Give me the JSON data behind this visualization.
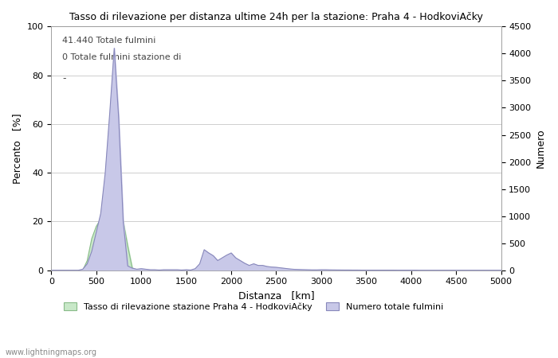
{
  "title": "Tasso di rilevazione per distanza ultime 24h per la stazione: Praha 4 - HodkoviAčky",
  "xlabel": "Distanza   [km]",
  "ylabel_left": "Percento   [%]",
  "ylabel_right": "Numero",
  "annotation_line1": "41.440 Totale fulmini",
  "annotation_line2": "0 Totale fulmini stazione di",
  "xlim": [
    0,
    5000
  ],
  "ylim_left": [
    0,
    100
  ],
  "ylim_right": [
    0,
    4500
  ],
  "xticks": [
    0,
    500,
    1000,
    1500,
    2000,
    2500,
    3000,
    3500,
    4000,
    4500,
    5000
  ],
  "yticks_left": [
    0,
    20,
    40,
    60,
    80,
    100
  ],
  "yticks_right": [
    0,
    500,
    1000,
    1500,
    2000,
    2500,
    3000,
    3500,
    4000,
    4500
  ],
  "legend_label_green": "Tasso di rilevazione stazione Praha 4 - HodkoviAčky",
  "legend_label_blue": "Numero totale fulmini",
  "watermark": "www.lightningmaps.org",
  "bg_color": "#ffffff",
  "grid_color": "#aaaaaa",
  "fill_green_color": "#c8e8c8",
  "fill_blue_color": "#c8c8e8",
  "line_blue_color": "#8888bb",
  "line_green_color": "#88bb88",
  "distances": [
    0,
    50,
    100,
    150,
    200,
    250,
    300,
    350,
    400,
    450,
    500,
    550,
    600,
    650,
    700,
    750,
    800,
    850,
    900,
    950,
    1000,
    1050,
    1100,
    1150,
    1200,
    1250,
    1300,
    1350,
    1400,
    1450,
    1500,
    1550,
    1600,
    1650,
    1700,
    1750,
    1800,
    1850,
    1900,
    1950,
    2000,
    2050,
    2100,
    2150,
    2200,
    2250,
    2300,
    2350,
    2400,
    2450,
    2500,
    2550,
    2600,
    2650,
    2700,
    2750,
    2800,
    2850,
    2900,
    2950,
    3000,
    3050,
    3100,
    3150,
    3200,
    3250,
    3300,
    3350,
    3400,
    3450,
    3500,
    3550,
    3600,
    3650,
    3700,
    3750,
    3800,
    3850,
    3900,
    3950,
    4000,
    4050,
    4100,
    4150,
    4200,
    4250,
    4300,
    4350,
    4400,
    4450,
    4500,
    4550,
    4600,
    4650,
    4700,
    4750,
    4800,
    4850,
    4900,
    4950,
    5000
  ],
  "total_counts": [
    0,
    0,
    0,
    0,
    0,
    0,
    0,
    20,
    120,
    350,
    700,
    1050,
    1800,
    2900,
    4100,
    2800,
    900,
    80,
    40,
    20,
    30,
    20,
    10,
    10,
    5,
    10,
    10,
    10,
    10,
    5,
    10,
    5,
    30,
    120,
    380,
    320,
    270,
    180,
    230,
    280,
    320,
    230,
    180,
    130,
    90,
    120,
    90,
    90,
    70,
    60,
    55,
    45,
    35,
    25,
    18,
    15,
    12,
    10,
    8,
    8,
    10,
    10,
    8,
    7,
    6,
    5,
    5,
    4,
    4,
    3,
    3,
    3,
    3,
    3,
    3,
    3,
    3,
    2,
    2,
    2,
    2,
    2,
    0,
    0,
    0,
    0,
    0,
    0,
    0,
    0,
    0,
    0,
    0,
    0,
    0,
    0,
    0,
    0,
    0,
    0,
    0
  ],
  "detection_rate": [
    0,
    0,
    0,
    0,
    0,
    0,
    0,
    0,
    4,
    13,
    18,
    21,
    24,
    25,
    26,
    24,
    20,
    10,
    1,
    0,
    0,
    0,
    0,
    0,
    0,
    0,
    0,
    0,
    0,
    0,
    0,
    0,
    0,
    0,
    0,
    0,
    0,
    0,
    0,
    0,
    0,
    0,
    0,
    0,
    0,
    0,
    0,
    0,
    0,
    0,
    0,
    0,
    0,
    0,
    0,
    0,
    0,
    0,
    0,
    0,
    0,
    0,
    0,
    0,
    0,
    0,
    0,
    0,
    0,
    0,
    0,
    0,
    0,
    0,
    0,
    0,
    0,
    0,
    0,
    0,
    0,
    0,
    0,
    0,
    0,
    0,
    0,
    0,
    0,
    0,
    0,
    0,
    0,
    0,
    0,
    0,
    0,
    0,
    0,
    0,
    0
  ]
}
